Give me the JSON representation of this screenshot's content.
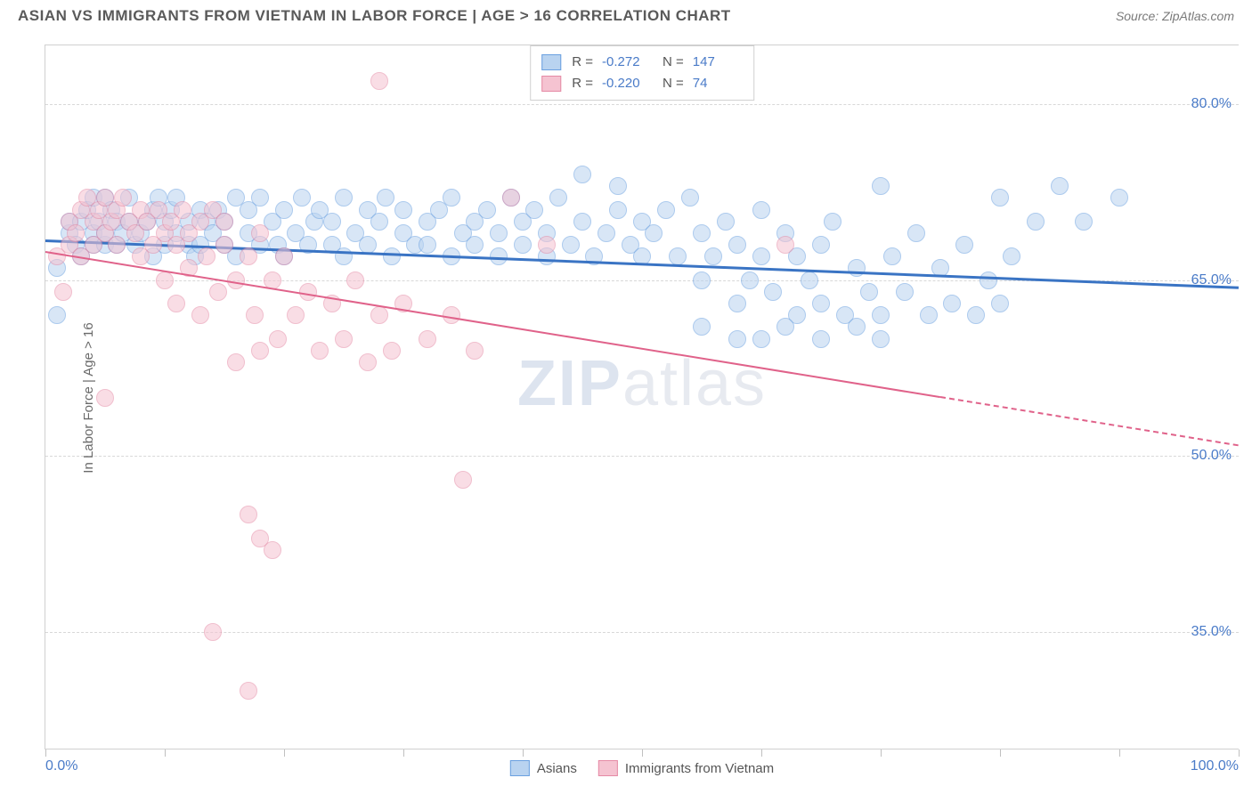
{
  "header": {
    "title": "ASIAN VS IMMIGRANTS FROM VIETNAM IN LABOR FORCE | AGE > 16 CORRELATION CHART",
    "source": "Source: ZipAtlas.com"
  },
  "axes": {
    "y_title": "In Labor Force | Age > 16",
    "x_min_label": "0.0%",
    "x_max_label": "100.0%",
    "x_min": 0,
    "x_max": 100,
    "y_min": 25,
    "y_max": 85,
    "y_ticks": [
      {
        "v": 80,
        "label": "80.0%"
      },
      {
        "v": 65,
        "label": "65.0%"
      },
      {
        "v": 50,
        "label": "50.0%"
      },
      {
        "v": 35,
        "label": "35.0%"
      }
    ],
    "x_tick_positions": [
      0,
      10,
      20,
      30,
      40,
      50,
      60,
      70,
      80,
      90,
      100
    ]
  },
  "watermark": {
    "bold": "ZIP",
    "rest": "atlas"
  },
  "series": [
    {
      "id": "asians",
      "label": "Asians",
      "marker_fill": "#b9d3f0",
      "marker_stroke": "#6aa0e0",
      "marker_fill_opacity": 0.55,
      "marker_radius": 10,
      "trend_color": "#3a74c4",
      "trend_width": 2.5,
      "trend": {
        "x1": 0,
        "y1": 68.5,
        "x2": 100,
        "y2": 64.5,
        "solid_until_x": 100
      },
      "stats": {
        "R": "-0.272",
        "N": "147"
      },
      "points": [
        [
          1,
          62
        ],
        [
          1,
          66
        ],
        [
          2,
          69
        ],
        [
          2,
          70
        ],
        [
          2.5,
          68
        ],
        [
          3,
          70
        ],
        [
          3,
          67
        ],
        [
          3.5,
          71
        ],
        [
          4,
          69
        ],
        [
          4,
          68
        ],
        [
          4,
          72
        ],
        [
          4.5,
          70
        ],
        [
          5,
          72
        ],
        [
          5,
          68
        ],
        [
          5,
          69
        ],
        [
          5.5,
          71
        ],
        [
          6,
          70
        ],
        [
          6,
          68
        ],
        [
          6.5,
          69
        ],
        [
          7,
          70
        ],
        [
          7,
          72
        ],
        [
          7.5,
          68
        ],
        [
          8,
          69
        ],
        [
          8.5,
          70
        ],
        [
          9,
          71
        ],
        [
          9,
          67
        ],
        [
          9.5,
          72
        ],
        [
          10,
          68
        ],
        [
          10,
          70
        ],
        [
          10.5,
          71
        ],
        [
          11,
          69
        ],
        [
          11,
          72
        ],
        [
          12,
          68
        ],
        [
          12,
          70
        ],
        [
          12.5,
          67
        ],
        [
          13,
          71
        ],
        [
          13,
          68
        ],
        [
          13.5,
          70
        ],
        [
          14,
          69
        ],
        [
          14.5,
          71
        ],
        [
          15,
          68
        ],
        [
          15,
          70
        ],
        [
          16,
          72
        ],
        [
          16,
          67
        ],
        [
          17,
          69
        ],
        [
          17,
          71
        ],
        [
          18,
          68
        ],
        [
          18,
          72
        ],
        [
          19,
          70
        ],
        [
          19.5,
          68
        ],
        [
          20,
          71
        ],
        [
          20,
          67
        ],
        [
          21,
          69
        ],
        [
          21.5,
          72
        ],
        [
          22,
          68
        ],
        [
          22.5,
          70
        ],
        [
          23,
          71
        ],
        [
          24,
          68
        ],
        [
          24,
          70
        ],
        [
          25,
          72
        ],
        [
          25,
          67
        ],
        [
          26,
          69
        ],
        [
          27,
          71
        ],
        [
          27,
          68
        ],
        [
          28,
          70
        ],
        [
          28.5,
          72
        ],
        [
          29,
          67
        ],
        [
          30,
          69
        ],
        [
          30,
          71
        ],
        [
          31,
          68
        ],
        [
          32,
          70
        ],
        [
          32,
          68
        ],
        [
          33,
          71
        ],
        [
          34,
          67
        ],
        [
          34,
          72
        ],
        [
          35,
          69
        ],
        [
          36,
          70
        ],
        [
          36,
          68
        ],
        [
          37,
          71
        ],
        [
          38,
          69
        ],
        [
          38,
          67
        ],
        [
          39,
          72
        ],
        [
          40,
          68
        ],
        [
          40,
          70
        ],
        [
          41,
          71
        ],
        [
          42,
          67
        ],
        [
          42,
          69
        ],
        [
          43,
          72
        ],
        [
          44,
          68
        ],
        [
          45,
          70
        ],
        [
          45,
          74
        ],
        [
          46,
          67
        ],
        [
          47,
          69
        ],
        [
          48,
          71
        ],
        [
          48,
          73
        ],
        [
          49,
          68
        ],
        [
          50,
          70
        ],
        [
          50,
          67
        ],
        [
          51,
          69
        ],
        [
          52,
          71
        ],
        [
          53,
          67
        ],
        [
          54,
          72
        ],
        [
          55,
          65
        ],
        [
          55,
          69
        ],
        [
          56,
          67
        ],
        [
          57,
          70
        ],
        [
          58,
          63
        ],
        [
          58,
          68
        ],
        [
          59,
          65
        ],
        [
          60,
          71
        ],
        [
          60,
          67
        ],
        [
          61,
          64
        ],
        [
          62,
          69
        ],
        [
          63,
          62
        ],
        [
          63,
          67
        ],
        [
          64,
          65
        ],
        [
          65,
          68
        ],
        [
          65,
          63
        ],
        [
          66,
          70
        ],
        [
          67,
          62
        ],
        [
          68,
          66
        ],
        [
          69,
          64
        ],
        [
          70,
          73
        ],
        [
          70,
          62
        ],
        [
          71,
          67
        ],
        [
          72,
          64
        ],
        [
          73,
          69
        ],
        [
          74,
          62
        ],
        [
          75,
          66
        ],
        [
          76,
          63
        ],
        [
          77,
          68
        ],
        [
          78,
          62
        ],
        [
          79,
          65
        ],
        [
          80,
          72
        ],
        [
          80,
          63
        ],
        [
          81,
          67
        ],
        [
          83,
          70
        ],
        [
          85,
          73
        ],
        [
          87,
          70
        ],
        [
          90,
          72
        ],
        [
          55,
          61
        ],
        [
          58,
          60
        ],
        [
          60,
          60
        ],
        [
          62,
          61
        ],
        [
          65,
          60
        ],
        [
          68,
          61
        ],
        [
          70,
          60
        ]
      ]
    },
    {
      "id": "vietnam",
      "label": "Immigrants from Vietnam",
      "marker_fill": "#f5c3d1",
      "marker_stroke": "#e58aa5",
      "marker_fill_opacity": 0.55,
      "marker_radius": 10,
      "trend_color": "#e0628a",
      "trend_width": 2,
      "trend": {
        "x1": 0,
        "y1": 67.5,
        "x2": 100,
        "y2": 51,
        "solid_until_x": 75
      },
      "stats": {
        "R": "-0.220",
        "N": "74"
      },
      "points": [
        [
          1,
          67
        ],
        [
          1.5,
          64
        ],
        [
          2,
          68
        ],
        [
          2,
          70
        ],
        [
          2.5,
          69
        ],
        [
          3,
          71
        ],
        [
          3,
          67
        ],
        [
          3.5,
          72
        ],
        [
          4,
          70
        ],
        [
          4,
          68
        ],
        [
          4.5,
          71
        ],
        [
          5,
          72
        ],
        [
          5,
          69
        ],
        [
          5.5,
          70
        ],
        [
          6,
          71
        ],
        [
          6,
          68
        ],
        [
          6.5,
          72
        ],
        [
          7,
          70
        ],
        [
          7.5,
          69
        ],
        [
          8,
          71
        ],
        [
          8,
          67
        ],
        [
          8.5,
          70
        ],
        [
          9,
          68
        ],
        [
          9.5,
          71
        ],
        [
          10,
          69
        ],
        [
          10,
          65
        ],
        [
          10.5,
          70
        ],
        [
          11,
          63
        ],
        [
          11,
          68
        ],
        [
          11.5,
          71
        ],
        [
          12,
          66
        ],
        [
          12,
          69
        ],
        [
          13,
          70
        ],
        [
          13,
          62
        ],
        [
          13.5,
          67
        ],
        [
          14,
          71
        ],
        [
          14.5,
          64
        ],
        [
          15,
          68
        ],
        [
          15,
          70
        ],
        [
          16,
          65
        ],
        [
          16,
          58
        ],
        [
          17,
          67
        ],
        [
          17.5,
          62
        ],
        [
          18,
          69
        ],
        [
          18,
          59
        ],
        [
          19,
          65
        ],
        [
          19.5,
          60
        ],
        [
          20,
          67
        ],
        [
          21,
          62
        ],
        [
          22,
          64
        ],
        [
          23,
          59
        ],
        [
          24,
          63
        ],
        [
          25,
          60
        ],
        [
          26,
          65
        ],
        [
          27,
          58
        ],
        [
          28,
          82
        ],
        [
          28,
          62
        ],
        [
          29,
          59
        ],
        [
          30,
          63
        ],
        [
          32,
          60
        ],
        [
          34,
          62
        ],
        [
          36,
          59
        ],
        [
          39,
          72
        ],
        [
          42,
          68
        ],
        [
          62,
          68
        ],
        [
          5,
          55
        ],
        [
          17,
          45
        ],
        [
          18,
          43
        ],
        [
          19,
          42
        ],
        [
          14,
          35
        ],
        [
          17,
          30
        ],
        [
          35,
          48
        ]
      ]
    }
  ],
  "legend_stat_labels": {
    "r": "R =",
    "n": "N ="
  }
}
